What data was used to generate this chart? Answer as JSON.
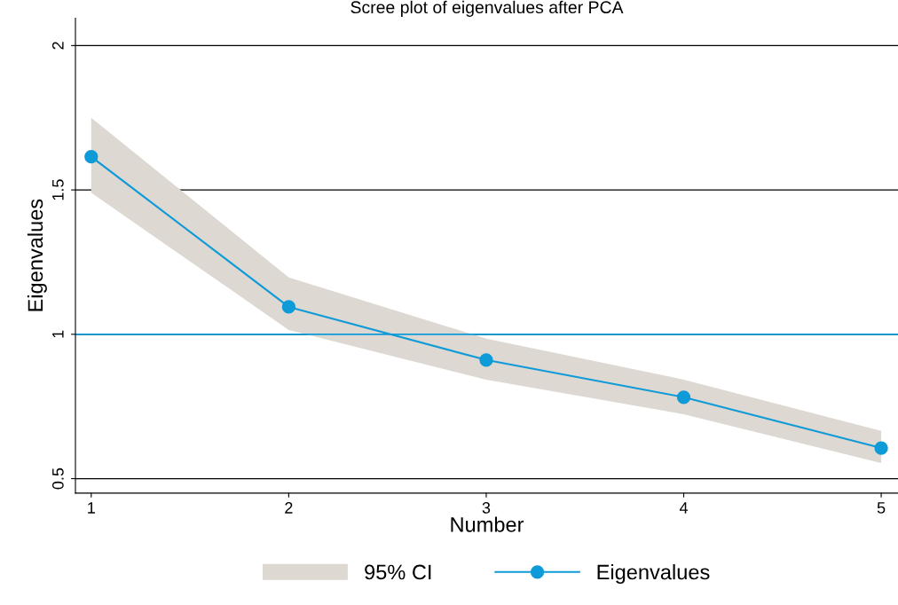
{
  "chart_data": {
    "type": "line",
    "title": "Scree plot of eigenvalues after PCA",
    "xlabel": "Number",
    "ylabel": "Eigenvalues",
    "x": [
      1,
      2,
      3,
      4,
      5
    ],
    "series": [
      {
        "name": "Eigenvalues",
        "color": "#0f9ad8",
        "values": [
          1.615,
          1.095,
          0.911,
          0.782,
          0.606
        ],
        "lower": [
          1.49,
          1.015,
          0.843,
          0.723,
          0.554
        ],
        "upper": [
          1.75,
          1.197,
          0.985,
          0.843,
          0.665
        ]
      }
    ],
    "xlim": [
      0.92,
      5.085
    ],
    "xticks": [
      1,
      2,
      3,
      4,
      5
    ],
    "ylim": [
      0.45,
      2.095
    ],
    "yticks": [
      0.5,
      1,
      1.5,
      2
    ],
    "ref_lines": [
      {
        "axis": "y",
        "value": 1,
        "color": "#0f9ad8"
      }
    ],
    "annotations": [
      "95% CI"
    ],
    "grid": "y",
    "legend": "bottom",
    "marker": "circle",
    "line_style": "solid"
  }
}
